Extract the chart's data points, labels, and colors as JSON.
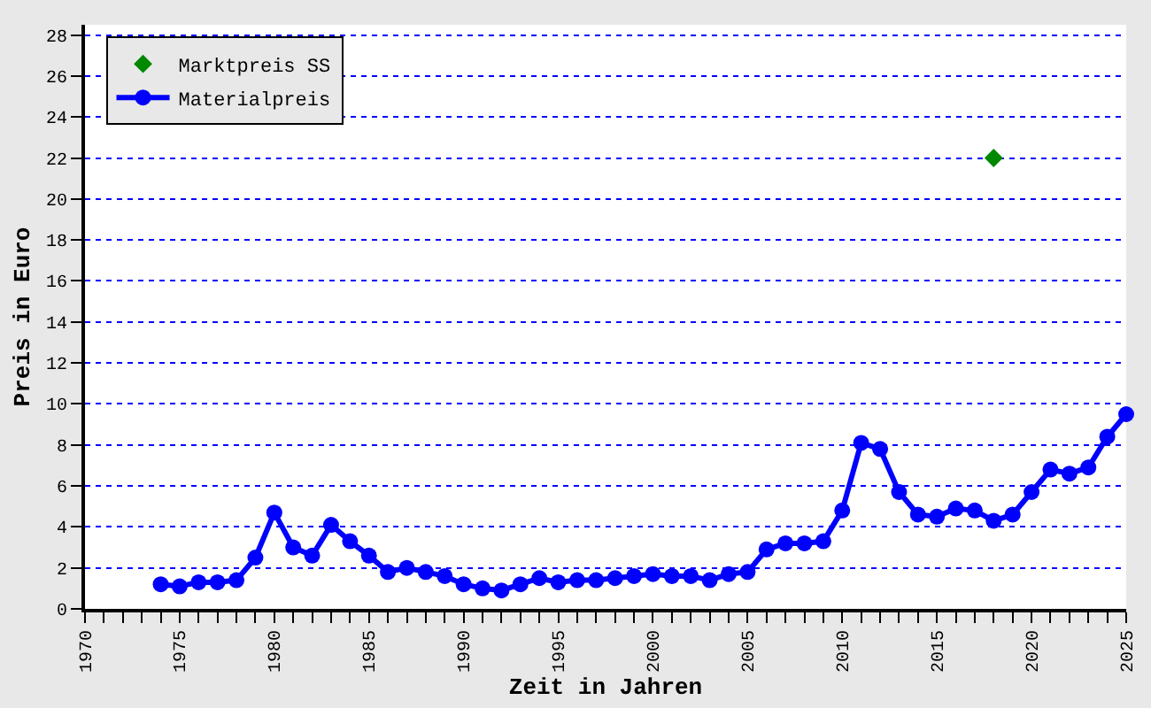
{
  "chart_data": {
    "type": "line",
    "xlabel": "Zeit in Jahren",
    "ylabel": "Preis in Euro",
    "xlim": [
      1970,
      2025
    ],
    "xticks": [
      1970,
      {
        "value": 1971,
        "label": null
      },
      {
        "value": 1972,
        "label": null
      },
      {
        "value": 1973,
        "label": null
      },
      {
        "value": 1974,
        "label": null
      },
      1975,
      {
        "value": 1976,
        "label": null
      },
      {
        "value": 1977,
        "label": null
      },
      {
        "value": 1978,
        "label": null
      },
      {
        "value": 1979,
        "label": null
      },
      1980,
      {
        "value": 1981,
        "label": null
      },
      {
        "value": 1982,
        "label": null
      },
      {
        "value": 1983,
        "label": null
      },
      {
        "value": 1984,
        "label": null
      },
      1985,
      {
        "value": 1986,
        "label": null
      },
      {
        "value": 1987,
        "label": null
      },
      {
        "value": 1988,
        "label": null
      },
      {
        "value": 1989,
        "label": null
      },
      1990,
      {
        "value": 1991,
        "label": null
      },
      {
        "value": 1992,
        "label": null
      },
      {
        "value": 1993,
        "label": null
      },
      {
        "value": 1994,
        "label": null
      },
      1995,
      {
        "value": 1996,
        "label": null
      },
      {
        "value": 1997,
        "label": null
      },
      {
        "value": 1998,
        "label": null
      },
      {
        "value": 1999,
        "label": null
      },
      2000,
      {
        "value": 2001,
        "label": null
      },
      {
        "value": 2002,
        "label": null
      },
      {
        "value": 2003,
        "label": null
      },
      {
        "value": 2004,
        "label": null
      },
      2005,
      {
        "value": 2006,
        "label": null
      },
      {
        "value": 2007,
        "label": null
      },
      {
        "value": 2008,
        "label": null
      },
      {
        "value": 2009,
        "label": null
      },
      2010,
      {
        "value": 2011,
        "label": null
      },
      {
        "value": 2012,
        "label": null
      },
      {
        "value": 2013,
        "label": null
      },
      {
        "value": 2014,
        "label": null
      },
      2015,
      {
        "value": 2016,
        "label": null
      },
      {
        "value": 2017,
        "label": null
      },
      {
        "value": 2018,
        "label": null
      },
      {
        "value": 2019,
        "label": null
      },
      2020,
      {
        "value": 2021,
        "label": null
      },
      {
        "value": 2022,
        "label": null
      },
      {
        "value": 2023,
        "label": null
      },
      {
        "value": 2024,
        "label": null
      },
      2025
    ],
    "ylim": [
      0,
      28.5
    ],
    "yticks": [
      0,
      2,
      4,
      6,
      8,
      10,
      12,
      14,
      16,
      18,
      20,
      22,
      24,
      26,
      28
    ],
    "grid": "y",
    "legend": "top left",
    "series": [
      {
        "name": "Marktpreis SS",
        "type": "scatter",
        "marker": "diamond",
        "color": "#008800",
        "x": [
          2018
        ],
        "values": [
          22
        ]
      },
      {
        "name": "Materialpreis",
        "marker": "circle",
        "color": "#0000ff",
        "x": [
          1974,
          1975,
          1976,
          1977,
          1978,
          1979,
          1980,
          1981,
          1982,
          1983,
          1984,
          1985,
          1986,
          1987,
          1988,
          1989,
          1990,
          1991,
          1992,
          1993,
          1994,
          1995,
          1996,
          1997,
          1998,
          1999,
          2000,
          2001,
          2002,
          2003,
          2004,
          2005,
          2006,
          2007,
          2008,
          2009,
          2010,
          2011,
          2012,
          2013,
          2014,
          2015,
          2016,
          2017,
          2018,
          2019,
          2020,
          2021,
          2022,
          2023,
          2024,
          2025
        ],
        "values": [
          1.2,
          1.1,
          1.3,
          1.3,
          1.4,
          2.5,
          4.7,
          3.0,
          2.6,
          4.1,
          3.3,
          2.6,
          1.8,
          2.0,
          1.8,
          1.6,
          1.2,
          1.0,
          0.9,
          1.2,
          1.5,
          1.3,
          1.4,
          1.4,
          1.5,
          1.6,
          1.7,
          1.6,
          1.6,
          1.4,
          1.7,
          1.8,
          2.9,
          3.2,
          3.2,
          3.3,
          4.8,
          8.1,
          7.8,
          5.7,
          4.6,
          4.5,
          4.9,
          4.8,
          4.3,
          4.6,
          5.7,
          6.8,
          6.6,
          6.9,
          8.4,
          9.5
        ]
      }
    ]
  }
}
